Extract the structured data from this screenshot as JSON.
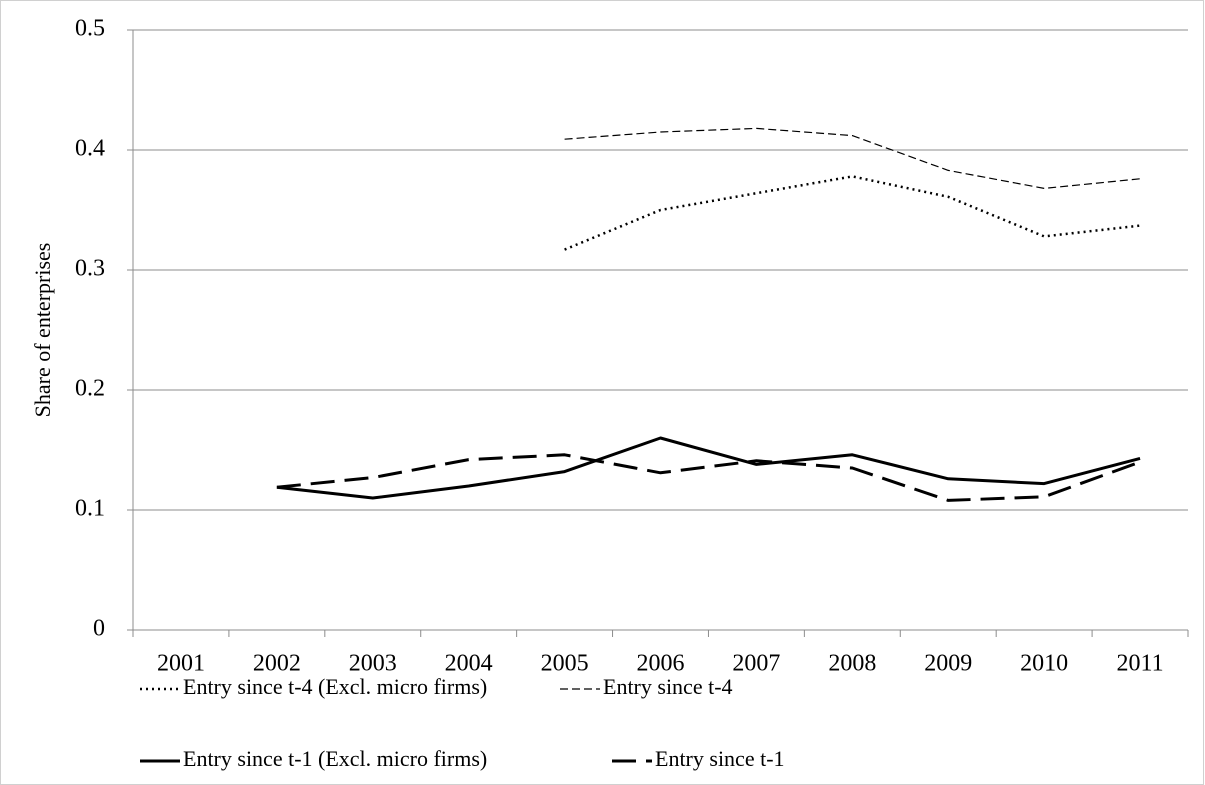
{
  "chart_data": {
    "type": "line",
    "y_label": "Share of enterprises",
    "categories": [
      "2001",
      "2002",
      "2003",
      "2004",
      "2005",
      "2006",
      "2007",
      "2008",
      "2009",
      "2010",
      "2011"
    ],
    "ylim": [
      0,
      0.5
    ],
    "yticks": [
      0,
      0.1,
      0.2,
      0.3,
      0.4,
      0.5
    ],
    "grid": true,
    "series": [
      {
        "name": "Entry since t-4 (Excl. micro firms)",
        "color": "#000000",
        "values": [
          null,
          null,
          null,
          null,
          0.317,
          0.35,
          0.364,
          0.378,
          0.361,
          0.328,
          0.337
        ]
      },
      {
        "name": "Entry since t-4",
        "color": "#000000",
        "values": [
          null,
          null,
          null,
          null,
          0.409,
          0.415,
          0.418,
          0.412,
          0.383,
          0.368,
          0.376
        ]
      },
      {
        "name": "Entry since t-1 (Excl. micro firms)",
        "color": "#000000",
        "values": [
          null,
          0.119,
          0.11,
          0.12,
          0.132,
          0.16,
          0.138,
          0.146,
          0.126,
          0.122,
          0.143
        ]
      },
      {
        "name": "Entry since t-1",
        "color": "#000000",
        "values": [
          null,
          0.119,
          0.127,
          0.142,
          0.146,
          0.131,
          0.141,
          0.135,
          0.108,
          0.111,
          0.14
        ]
      }
    ]
  }
}
